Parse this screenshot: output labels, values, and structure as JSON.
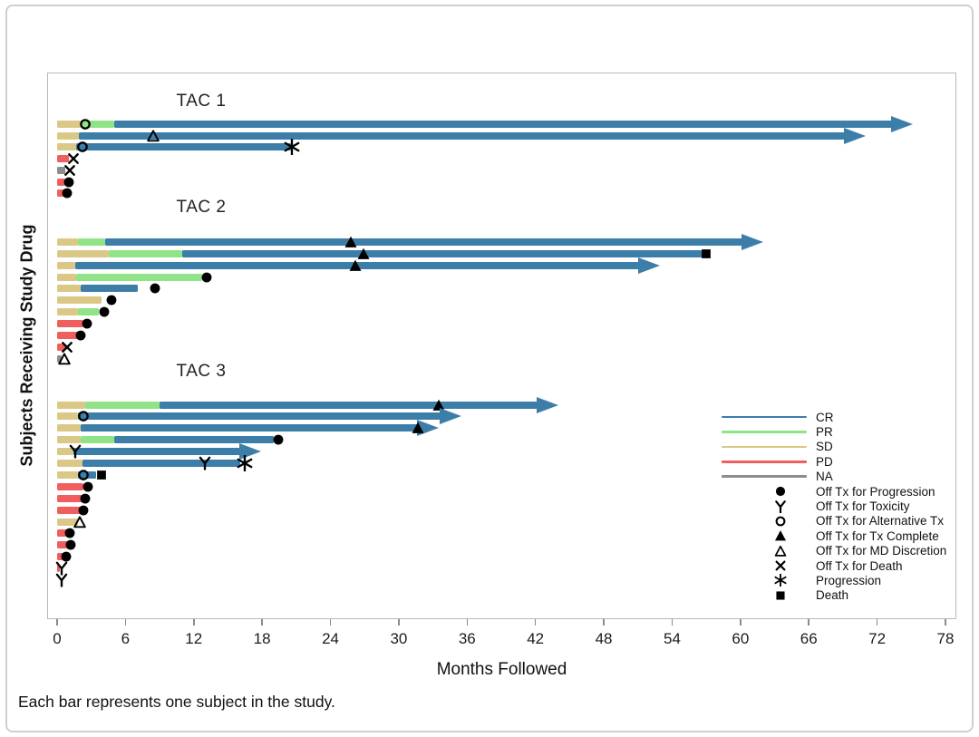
{
  "figure": {
    "y_axis_label": "Subjects Receiving Study Drug",
    "x_axis_label": "Months Followed",
    "caption": "Each bar represents one subject in the study."
  },
  "chart_data": {
    "type": "bar",
    "subtype": "swimmer-plot",
    "xlabel": "Months Followed",
    "ylabel": "Subjects Receiving Study Drug",
    "x_range": [
      0,
      78
    ],
    "x_ticks": [
      0,
      6,
      12,
      18,
      24,
      30,
      36,
      42,
      48,
      54,
      60,
      66,
      72,
      78
    ],
    "status_colors": {
      "CR": "#3d7ea9",
      "PR": "#90e487",
      "SD": "#dbc886",
      "PD": "#f15e5e",
      "NA": "#8d8d8d"
    },
    "marker_color": "#000000",
    "groups": [
      {
        "label": "TAC 1",
        "subjects": [
          {
            "segments": [
              [
                "SD",
                0,
                2.1
              ],
              [
                "PR",
                2.1,
                5.0
              ],
              [
                "CR",
                5.0,
                75.1
              ]
            ],
            "arrow": true,
            "markers": [
              [
                "open-circle",
                2.5
              ]
            ]
          },
          {
            "segments": [
              [
                "SD",
                0,
                1.9
              ],
              [
                "CR",
                1.9,
                71.0
              ]
            ],
            "arrow": true,
            "markers": [
              [
                "open-triangle",
                8.4
              ]
            ]
          },
          {
            "segments": [
              [
                "SD",
                0,
                1.7
              ],
              [
                "CR",
                1.7,
                20.5
              ]
            ],
            "arrow": false,
            "markers": [
              [
                "open-circle",
                2.2
              ],
              [
                "asterisk",
                20.6
              ]
            ]
          },
          {
            "segments": [
              [
                "PD",
                0,
                1.0
              ]
            ],
            "arrow": false,
            "markers": [
              [
                "x",
                1.4
              ]
            ]
          },
          {
            "segments": [
              [
                "NA",
                0,
                0.7
              ]
            ],
            "arrow": false,
            "markers": [
              [
                "x",
                1.1
              ]
            ]
          },
          {
            "segments": [
              [
                "PD",
                0,
                0.7
              ]
            ],
            "arrow": false,
            "markers": [
              [
                "filled-circle",
                1.0
              ]
            ]
          },
          {
            "segments": [
              [
                "PD",
                0,
                0.6
              ]
            ],
            "arrow": false,
            "markers": [
              [
                "filled-circle",
                0.9
              ]
            ]
          }
        ]
      },
      {
        "label": "TAC 2",
        "subjects": [
          {
            "segments": [
              [
                "SD",
                0,
                1.8
              ],
              [
                "PR",
                1.8,
                4.2
              ],
              [
                "CR",
                4.2,
                62.0
              ]
            ],
            "arrow": true,
            "markers": [
              [
                "filled-triangle",
                25.8
              ]
            ]
          },
          {
            "segments": [
              [
                "SD",
                0,
                4.5
              ],
              [
                "PR",
                4.5,
                11.0
              ],
              [
                "CR",
                11.0,
                57.0
              ]
            ],
            "arrow": false,
            "markers": [
              [
                "filled-triangle",
                26.9
              ],
              [
                "square",
                57.0
              ]
            ]
          },
          {
            "segments": [
              [
                "SD",
                0,
                1.6
              ],
              [
                "CR",
                1.6,
                52.9
              ]
            ],
            "arrow": true,
            "markers": [
              [
                "filled-triangle",
                26.2
              ]
            ]
          },
          {
            "segments": [
              [
                "SD",
                0,
                1.7
              ],
              [
                "PR",
                1.7,
                12.7
              ]
            ],
            "arrow": false,
            "markers": [
              [
                "filled-circle",
                13.1
              ]
            ]
          },
          {
            "segments": [
              [
                "SD",
                0,
                2.1
              ],
              [
                "CR",
                2.1,
                7.1
              ]
            ],
            "arrow": false,
            "markers": [
              [
                "filled-circle",
                8.6
              ]
            ]
          },
          {
            "segments": [
              [
                "SD",
                0,
                3.9
              ]
            ],
            "arrow": false,
            "markers": [
              [
                "filled-circle",
                4.8
              ]
            ]
          },
          {
            "segments": [
              [
                "SD",
                0,
                1.8
              ],
              [
                "PR",
                1.8,
                3.7
              ]
            ],
            "arrow": false,
            "markers": [
              [
                "filled-circle",
                4.1
              ]
            ]
          },
          {
            "segments": [
              [
                "PD",
                0,
                2.3
              ]
            ],
            "arrow": false,
            "markers": [
              [
                "filled-circle",
                2.6
              ]
            ]
          },
          {
            "segments": [
              [
                "PD",
                0,
                1.9
              ]
            ],
            "arrow": false,
            "markers": [
              [
                "filled-circle",
                2.1
              ]
            ]
          },
          {
            "segments": [
              [
                "PD",
                0,
                0.7
              ]
            ],
            "arrow": false,
            "markers": [
              [
                "x",
                0.9
              ]
            ]
          },
          {
            "segments": [
              [
                "NA",
                0,
                0.4
              ]
            ],
            "arrow": false,
            "markers": [
              [
                "open-triangle",
                0.6
              ]
            ]
          }
        ]
      },
      {
        "label": "TAC 3",
        "subjects": [
          {
            "segments": [
              [
                "SD",
                0,
                2.5
              ],
              [
                "PR",
                2.5,
                9.0
              ],
              [
                "CR",
                9.0,
                44.0
              ]
            ],
            "arrow": true,
            "markers": [
              [
                "filled-triangle",
                33.5
              ]
            ]
          },
          {
            "segments": [
              [
                "SD",
                0,
                1.8
              ],
              [
                "CR",
                1.8,
                35.5
              ]
            ],
            "arrow": true,
            "markers": [
              [
                "open-circle",
                2.3
              ]
            ]
          },
          {
            "segments": [
              [
                "SD",
                0,
                2.1
              ],
              [
                "CR",
                2.1,
                33.5
              ]
            ],
            "arrow": true,
            "markers": [
              [
                "filled-triangle",
                31.7
              ]
            ]
          },
          {
            "segments": [
              [
                "SD",
                0,
                2.1
              ],
              [
                "PR",
                2.1,
                5.0
              ],
              [
                "CR",
                5.0,
                19.0
              ]
            ],
            "arrow": false,
            "markers": [
              [
                "filled-circle",
                19.4
              ]
            ]
          },
          {
            "segments": [
              [
                "SD",
                0,
                1.4
              ],
              [
                "CR",
                1.4,
                17.9
              ]
            ],
            "arrow": true,
            "markers": [
              [
                "Y",
                1.6
              ]
            ]
          },
          {
            "segments": [
              [
                "SD",
                0,
                2.2
              ],
              [
                "CR",
                2.2,
                16.1
              ]
            ],
            "arrow": false,
            "markers": [
              [
                "Y",
                13.0
              ],
              [
                "asterisk",
                16.5
              ]
            ]
          },
          {
            "segments": [
              [
                "SD",
                0,
                1.8
              ],
              [
                "CR",
                1.8,
                3.4
              ]
            ],
            "arrow": false,
            "markers": [
              [
                "open-circle",
                2.3
              ],
              [
                "square",
                3.9
              ]
            ]
          },
          {
            "segments": [
              [
                "PD",
                0,
                2.3
              ]
            ],
            "arrow": false,
            "markers": [
              [
                "filled-circle",
                2.7
              ]
            ]
          },
          {
            "segments": [
              [
                "PD",
                0,
                2.2
              ]
            ],
            "arrow": false,
            "markers": [
              [
                "filled-circle",
                2.5
              ]
            ]
          },
          {
            "segments": [
              [
                "PD",
                0,
                2.1
              ]
            ],
            "arrow": false,
            "markers": [
              [
                "filled-circle",
                2.3
              ]
            ]
          },
          {
            "segments": [
              [
                "SD",
                0,
                1.8
              ]
            ],
            "arrow": false,
            "markers": [
              [
                "open-triangle",
                2.0
              ]
            ]
          },
          {
            "segments": [
              [
                "PD",
                0,
                0.9
              ]
            ],
            "arrow": false,
            "markers": [
              [
                "filled-circle",
                1.1
              ]
            ]
          },
          {
            "segments": [
              [
                "PD",
                0,
                1.0
              ]
            ],
            "arrow": false,
            "markers": [
              [
                "filled-circle",
                1.2
              ]
            ]
          },
          {
            "segments": [
              [
                "PD",
                0,
                0.6
              ]
            ],
            "arrow": false,
            "markers": [
              [
                "filled-circle",
                0.8
              ]
            ]
          },
          {
            "segments": [
              [
                "PD",
                0,
                0.2
              ]
            ],
            "arrow": false,
            "markers": [
              [
                "Y",
                0.4
              ]
            ]
          },
          {
            "segments": [],
            "arrow": false,
            "markers": [
              [
                "Y",
                0.4
              ]
            ]
          }
        ]
      }
    ],
    "legend": {
      "status_entries": [
        {
          "label": "CR",
          "status": "CR"
        },
        {
          "label": "PR",
          "status": "PR"
        },
        {
          "label": "SD",
          "status": "SD"
        },
        {
          "label": "PD",
          "status": "PD"
        },
        {
          "label": "NA",
          "status": "NA"
        }
      ],
      "marker_entries": [
        {
          "label": "Off Tx for Progression",
          "marker": "filled-circle"
        },
        {
          "label": "Off Tx for Toxicity",
          "marker": "Y"
        },
        {
          "label": "Off Tx for Alternative Tx",
          "marker": "open-circle"
        },
        {
          "label": "Off Tx for Tx Complete",
          "marker": "filled-triangle"
        },
        {
          "label": "Off Tx for MD Discretion",
          "marker": "open-triangle"
        },
        {
          "label": "Off Tx for Death",
          "marker": "x"
        },
        {
          "label": "Progression",
          "marker": "asterisk"
        },
        {
          "label": "Death",
          "marker": "square"
        }
      ]
    }
  }
}
